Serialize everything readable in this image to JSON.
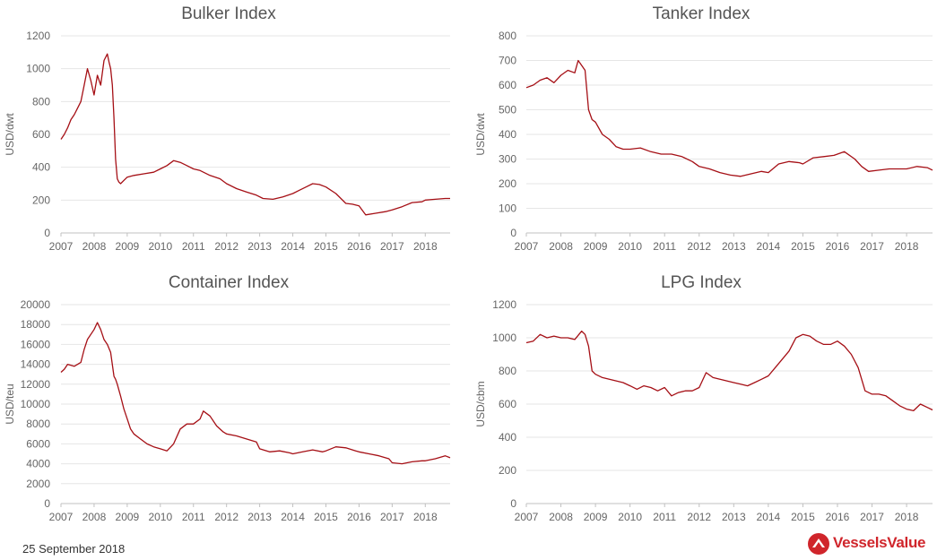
{
  "footer": {
    "date": "25 September 2018"
  },
  "brand": {
    "name": "VesselsValue",
    "color": "#d0252b",
    "logo_icon": "vesselsvalue-logo-icon"
  },
  "colors": {
    "series": "#a50f15",
    "grid": "#e6e6e6",
    "title": "#555555",
    "tick": "#666666"
  },
  "chart_data": [
    {
      "type": "line",
      "title": "Bulker Index",
      "ylabel": "USD/dwt",
      "xlim": [
        2007,
        2018.75
      ],
      "ylim": [
        0,
        1200
      ],
      "yticks": [
        "0",
        "200",
        "400",
        "600",
        "800",
        "1000",
        "1200"
      ],
      "xticks": [
        "2007",
        "2008",
        "2009",
        "2010",
        "2011",
        "2012",
        "2013",
        "2014",
        "2015",
        "2016",
        "2017",
        "2018"
      ],
      "grid": true,
      "legend": "none",
      "series": [
        {
          "x": [
            2007.0,
            2007.1,
            2007.2,
            2007.3,
            2007.4,
            2007.5,
            2007.6,
            2007.7,
            2007.8,
            2007.9,
            2008.0,
            2008.1,
            2008.2,
            2008.3,
            2008.4,
            2008.45,
            2008.5,
            2008.55,
            2008.6,
            2008.65,
            2008.7,
            2008.75,
            2008.8,
            2008.9,
            2009.0,
            2009.2,
            2009.5,
            2009.8,
            2010.0,
            2010.2,
            2010.4,
            2010.6,
            2010.8,
            2011.0,
            2011.2,
            2011.5,
            2011.8,
            2012.0,
            2012.3,
            2012.6,
            2012.9,
            2013.1,
            2013.4,
            2013.7,
            2014.0,
            2014.2,
            2014.4,
            2014.6,
            2014.8,
            2015.0,
            2015.3,
            2015.6,
            2015.8,
            2016.0,
            2016.2,
            2016.5,
            2016.8,
            2017.0,
            2017.3,
            2017.6,
            2017.9,
            2018.0,
            2018.3,
            2018.6,
            2018.75
          ],
          "values": [
            570,
            600,
            640,
            690,
            720,
            760,
            800,
            900,
            1000,
            930,
            840,
            960,
            900,
            1050,
            1090,
            1040,
            1000,
            900,
            700,
            450,
            330,
            310,
            300,
            320,
            340,
            350,
            360,
            370,
            390,
            410,
            440,
            430,
            410,
            390,
            380,
            350,
            330,
            300,
            270,
            250,
            230,
            210,
            205,
            220,
            240,
            260,
            280,
            300,
            295,
            280,
            240,
            180,
            175,
            165,
            110,
            120,
            130,
            140,
            160,
            185,
            190,
            200,
            205,
            210,
            210
          ]
        }
      ]
    },
    {
      "type": "line",
      "title": "Tanker Index",
      "ylabel": "USD/dwt",
      "xlim": [
        2007,
        2018.75
      ],
      "ylim": [
        0,
        800
      ],
      "yticks": [
        "0",
        "100",
        "200",
        "300",
        "400",
        "500",
        "600",
        "700",
        "800"
      ],
      "xticks": [
        "2007",
        "2008",
        "2009",
        "2010",
        "2011",
        "2012",
        "2013",
        "2014",
        "2015",
        "2016",
        "2017",
        "2018"
      ],
      "grid": true,
      "legend": "none",
      "series": [
        {
          "x": [
            2007.0,
            2007.2,
            2007.4,
            2007.6,
            2007.8,
            2008.0,
            2008.2,
            2008.4,
            2008.5,
            2008.6,
            2008.7,
            2008.8,
            2008.9,
            2009.0,
            2009.2,
            2009.4,
            2009.6,
            2009.8,
            2010.0,
            2010.3,
            2010.6,
            2010.9,
            2011.2,
            2011.5,
            2011.8,
            2012.0,
            2012.3,
            2012.6,
            2012.9,
            2013.2,
            2013.5,
            2013.8,
            2014.0,
            2014.3,
            2014.6,
            2014.9,
            2015.0,
            2015.3,
            2015.6,
            2015.9,
            2016.0,
            2016.2,
            2016.5,
            2016.7,
            2016.9,
            2017.2,
            2017.5,
            2017.8,
            2018.0,
            2018.3,
            2018.6,
            2018.75
          ],
          "values": [
            590,
            600,
            620,
            630,
            610,
            640,
            660,
            650,
            700,
            680,
            660,
            500,
            460,
            450,
            400,
            380,
            350,
            340,
            340,
            345,
            330,
            320,
            320,
            310,
            290,
            270,
            260,
            245,
            235,
            230,
            240,
            250,
            245,
            280,
            290,
            285,
            280,
            305,
            310,
            315,
            320,
            330,
            300,
            270,
            250,
            255,
            260,
            260,
            260,
            270,
            265,
            255
          ]
        }
      ]
    },
    {
      "type": "line",
      "title": "Container Index",
      "ylabel": "USD/teu",
      "xlim": [
        2007,
        2018.75
      ],
      "ylim": [
        0,
        20000
      ],
      "yticks": [
        "0",
        "2000",
        "4000",
        "6000",
        "8000",
        "10000",
        "12000",
        "14000",
        "16000",
        "18000",
        "20000"
      ],
      "xticks": [
        "2007",
        "2008",
        "2009",
        "2010",
        "2011",
        "2012",
        "2013",
        "2014",
        "2015",
        "2016",
        "2017",
        "2018"
      ],
      "grid": true,
      "legend": "none",
      "series": [
        {
          "x": [
            2007.0,
            2007.1,
            2007.2,
            2007.4,
            2007.6,
            2007.7,
            2007.8,
            2008.0,
            2008.1,
            2008.2,
            2008.3,
            2008.4,
            2008.5,
            2008.6,
            2008.65,
            2008.7,
            2008.8,
            2008.9,
            2009.0,
            2009.1,
            2009.2,
            2009.4,
            2009.6,
            2009.8,
            2010.0,
            2010.2,
            2010.4,
            2010.6,
            2010.8,
            2011.0,
            2011.2,
            2011.3,
            2011.5,
            2011.7,
            2011.9,
            2012.0,
            2012.3,
            2012.6,
            2012.9,
            2013.0,
            2013.3,
            2013.6,
            2013.9,
            2014.0,
            2014.3,
            2014.6,
            2014.9,
            2015.0,
            2015.3,
            2015.6,
            2015.9,
            2016.0,
            2016.3,
            2016.6,
            2016.9,
            2017.0,
            2017.3,
            2017.6,
            2017.9,
            2018.0,
            2018.3,
            2018.6,
            2018.75
          ],
          "values": [
            13200,
            13500,
            14000,
            13800,
            14200,
            15500,
            16500,
            17500,
            18200,
            17500,
            16500,
            16000,
            15200,
            12800,
            12500,
            12000,
            10800,
            9500,
            8500,
            7500,
            7000,
            6500,
            6000,
            5700,
            5500,
            5300,
            6000,
            7500,
            8000,
            8000,
            8500,
            9300,
            8800,
            7800,
            7200,
            7000,
            6800,
            6500,
            6200,
            5500,
            5200,
            5300,
            5100,
            5000,
            5200,
            5400,
            5200,
            5300,
            5700,
            5600,
            5300,
            5200,
            5000,
            4800,
            4500,
            4100,
            4000,
            4200,
            4300,
            4300,
            4500,
            4800,
            4600
          ]
        }
      ]
    },
    {
      "type": "line",
      "title": "LPG Index",
      "ylabel": "USD/cbm",
      "xlim": [
        2007,
        2018.75
      ],
      "ylim": [
        0,
        1200
      ],
      "yticks": [
        "0",
        "200",
        "400",
        "600",
        "800",
        "1000",
        "1200"
      ],
      "xticks": [
        "2007",
        "2008",
        "2009",
        "2010",
        "2011",
        "2012",
        "2013",
        "2014",
        "2015",
        "2016",
        "2017",
        "2018"
      ],
      "grid": true,
      "legend": "none",
      "series": [
        {
          "x": [
            2007.0,
            2007.2,
            2007.4,
            2007.6,
            2007.8,
            2008.0,
            2008.2,
            2008.4,
            2008.6,
            2008.7,
            2008.8,
            2008.9,
            2009.0,
            2009.2,
            2009.4,
            2009.6,
            2009.8,
            2010.0,
            2010.2,
            2010.4,
            2010.6,
            2010.8,
            2011.0,
            2011.2,
            2011.4,
            2011.6,
            2011.8,
            2012.0,
            2012.2,
            2012.4,
            2012.6,
            2012.8,
            2013.0,
            2013.2,
            2013.4,
            2013.6,
            2013.8,
            2014.0,
            2014.2,
            2014.4,
            2014.6,
            2014.8,
            2015.0,
            2015.2,
            2015.4,
            2015.6,
            2015.8,
            2016.0,
            2016.2,
            2016.4,
            2016.6,
            2016.8,
            2017.0,
            2017.2,
            2017.4,
            2017.6,
            2017.8,
            2018.0,
            2018.2,
            2018.4,
            2018.6,
            2018.75
          ],
          "values": [
            970,
            980,
            1020,
            1000,
            1010,
            1000,
            1000,
            990,
            1040,
            1020,
            950,
            800,
            780,
            760,
            750,
            740,
            730,
            710,
            690,
            710,
            700,
            680,
            700,
            650,
            670,
            680,
            680,
            700,
            790,
            760,
            750,
            740,
            730,
            720,
            710,
            730,
            750,
            770,
            820,
            870,
            920,
            1000,
            1020,
            1010,
            980,
            960,
            960,
            980,
            950,
            900,
            820,
            680,
            660,
            660,
            650,
            620,
            590,
            570,
            560,
            600,
            580,
            565
          ]
        }
      ]
    }
  ]
}
